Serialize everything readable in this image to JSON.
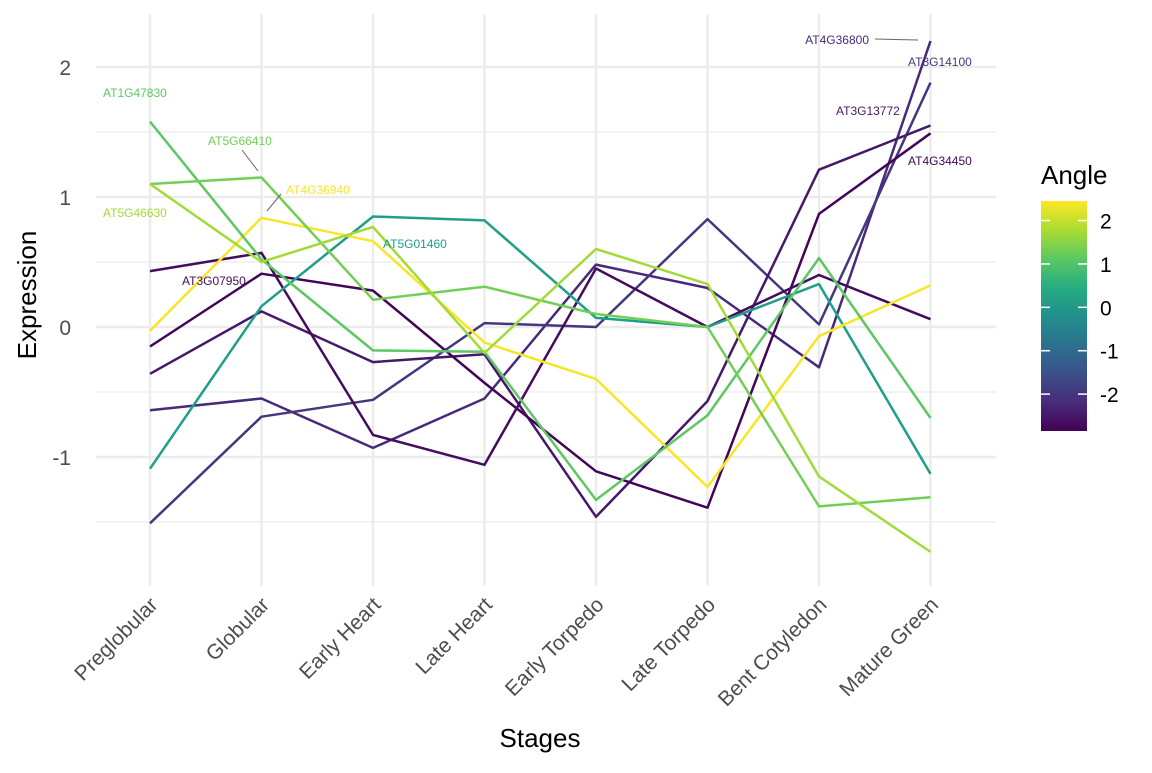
{
  "chart_data": {
    "type": "line",
    "xlabel": "Stages",
    "ylabel": "Expression",
    "categories": [
      "Preglobular",
      "Globular",
      "Early Heart",
      "Late Heart",
      "Early Torpedo",
      "Late Torpedo",
      "Bent Cotyledon",
      "Mature Green"
    ],
    "y_ticks": [
      -1,
      0,
      1,
      2
    ],
    "y_tick_labels": [
      "-1",
      "0",
      "1",
      "2"
    ],
    "ylim": [
      -1.97,
      2.4
    ],
    "grid": true,
    "legend": {
      "title": "Angle",
      "position": "right",
      "type": "colorbar",
      "range": [
        -2.85,
        2.45
      ],
      "ticks": [
        2,
        1,
        0,
        -1,
        -2
      ],
      "tick_labels": [
        "2",
        "1",
        "0",
        "-1",
        "-2"
      ]
    },
    "series": [
      {
        "angle": -2.2,
        "values": [
          -0.64,
          -0.55,
          -0.93,
          -0.55,
          0.48,
          0.3,
          -0.31,
          2.2
        ]
      },
      {
        "angle": -2.0,
        "values": [
          -1.51,
          -0.69,
          -0.56,
          0.03,
          0.0,
          0.83,
          0.02,
          1.88
        ]
      },
      {
        "angle": -2.5,
        "values": [
          -0.36,
          0.12,
          -0.27,
          -0.21,
          -1.46,
          -0.57,
          1.21,
          1.55
        ]
      },
      {
        "angle": -2.8,
        "values": [
          -0.15,
          0.41,
          0.28,
          -0.43,
          -1.11,
          -1.39,
          0.87,
          1.49
        ]
      },
      {
        "angle": -2.7,
        "values": [
          0.43,
          0.57,
          -0.83,
          -1.06,
          0.45,
          0.0,
          0.4,
          0.06
        ]
      },
      {
        "angle": 0.1,
        "values": [
          -1.09,
          0.16,
          0.85,
          0.82,
          0.07,
          0.0,
          0.33,
          -1.13
        ]
      },
      {
        "angle": 2.4,
        "values": [
          -0.03,
          0.84,
          0.66,
          -0.12,
          -0.4,
          -1.23,
          -0.07,
          0.32
        ]
      },
      {
        "angle": 1.1,
        "values": [
          1.58,
          0.52,
          -0.18,
          -0.19,
          -1.33,
          -0.68,
          0.53,
          -0.7
        ]
      },
      {
        "angle": 1.3,
        "values": [
          1.1,
          1.15,
          0.21,
          0.31,
          0.1,
          0.0,
          -1.38,
          -1.31
        ]
      },
      {
        "angle": 1.7,
        "values": [
          1.1,
          0.5,
          0.77,
          -0.2,
          0.6,
          0.33,
          -1.15,
          -1.73
        ]
      }
    ],
    "annotations": [
      {
        "text": "AT1G47830",
        "angle": 1.1
      },
      {
        "text": "AT5G66410",
        "angle": 1.3
      },
      {
        "text": "AT4G36940",
        "angle": 2.4
      },
      {
        "text": "AT5G46630",
        "angle": 1.7
      },
      {
        "text": "AT5G01460",
        "angle": 0.1
      },
      {
        "text": "AT3G07950",
        "angle": -2.7
      },
      {
        "text": "AT4G36800",
        "angle": -2.2
      },
      {
        "text": "AT3G14100",
        "angle": -2.0
      },
      {
        "text": "AT3G13772",
        "angle": -2.5
      },
      {
        "text": "AT4G34450",
        "angle": -2.8
      }
    ]
  }
}
